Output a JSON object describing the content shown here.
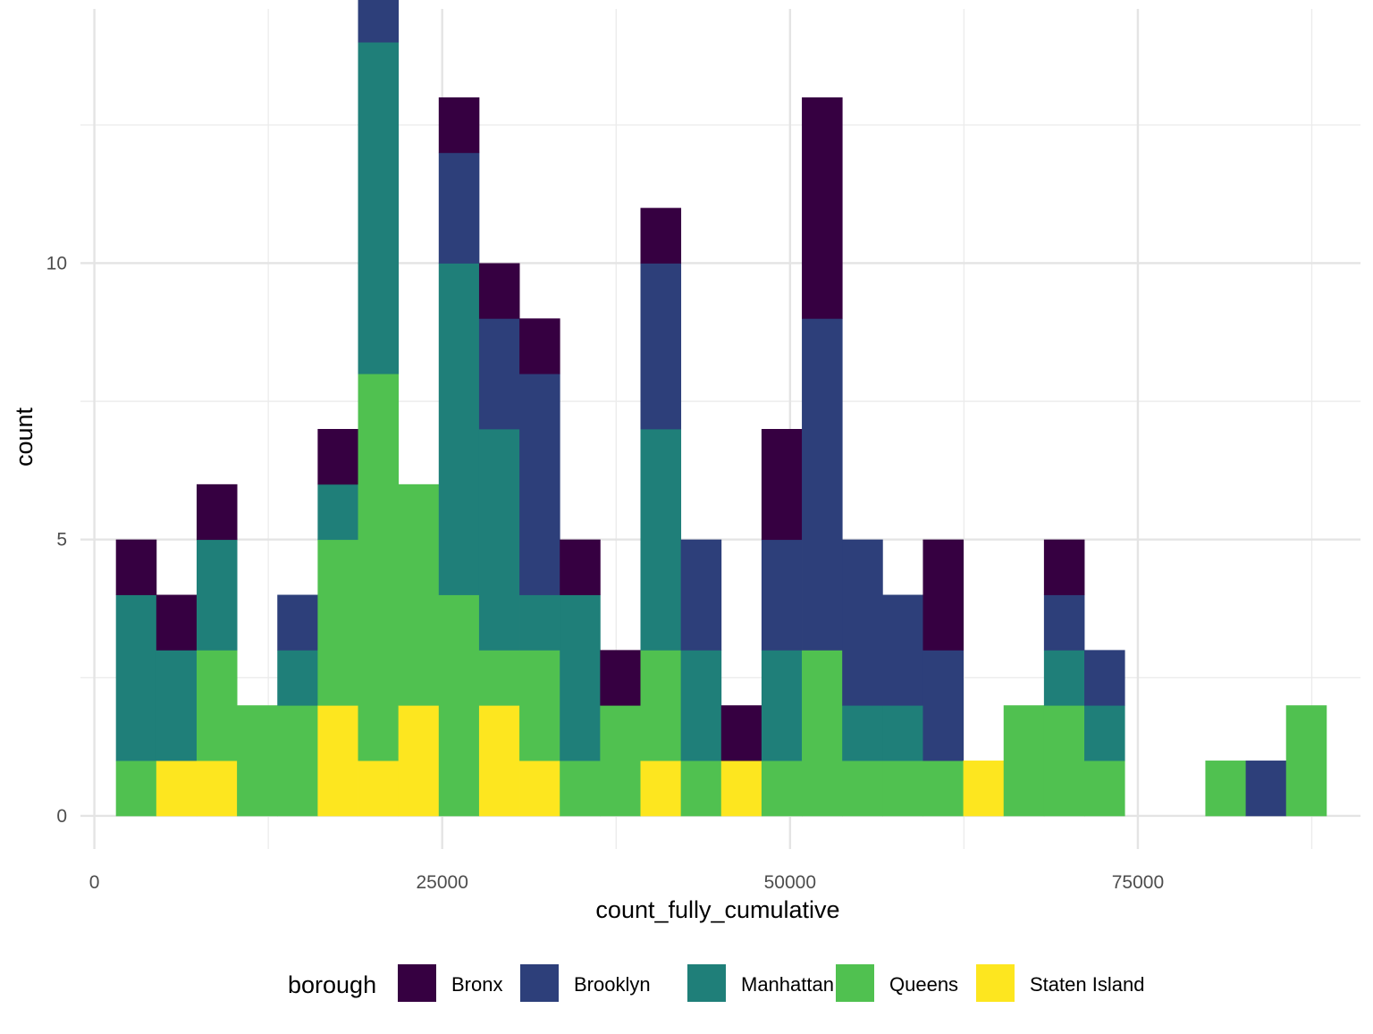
{
  "chart_data": {
    "type": "bar",
    "subtype": "stacked-histogram",
    "title": "",
    "xlabel": "count_fully_cumulative",
    "ylabel": "count",
    "x_ticks": [
      0,
      25000,
      50000,
      75000
    ],
    "y_ticks": [
      0,
      5,
      10
    ],
    "xlim": [
      -1000,
      91000
    ],
    "ylim": [
      -0.6,
      14.6
    ],
    "grid": true,
    "legend_position": "bottom",
    "legend_title": "borough",
    "bin_width": 2900,
    "bin_centers": [
      3000,
      5900,
      8800,
      11700,
      14600,
      17500,
      20400,
      23300,
      26200,
      29100,
      32000,
      34900,
      37800,
      40700,
      43600,
      46500,
      49400,
      52300,
      55200,
      58100,
      61000,
      63900,
      66800,
      69700,
      72600,
      75500,
      78400,
      81300,
      84200,
      87100
    ],
    "stack_order": [
      "Staten Island",
      "Queens",
      "Manhattan",
      "Brooklyn",
      "Bronx"
    ],
    "series": [
      {
        "name": "Bronx",
        "color": "#360041",
        "values": [
          1,
          1,
          1,
          0,
          0,
          1,
          0,
          0,
          1,
          1,
          1,
          1,
          1,
          1,
          0,
          1,
          2,
          4,
          0,
          0,
          2,
          0,
          0,
          1,
          0,
          0,
          0,
          0,
          0,
          0
        ]
      },
      {
        "name": "Brooklyn",
        "color": "#2D3F7A",
        "values": [
          0,
          0,
          0,
          0,
          1,
          0,
          1,
          0,
          2,
          2,
          4,
          0,
          0,
          3,
          2,
          0,
          2,
          6,
          3,
          2,
          2,
          0,
          0,
          1,
          1,
          0,
          0,
          0,
          1,
          0
        ]
      },
      {
        "name": "Manhattan",
        "color": "#1F7F79",
        "values": [
          3,
          2,
          2,
          0,
          1,
          1,
          6,
          0,
          6,
          4,
          1,
          3,
          0,
          4,
          2,
          0,
          2,
          0,
          1,
          1,
          0,
          0,
          0,
          1,
          1,
          0,
          0,
          0,
          0,
          0
        ]
      },
      {
        "name": "Queens",
        "color": "#50C150",
        "values": [
          1,
          0,
          2,
          2,
          2,
          3,
          7,
          4,
          4,
          1,
          2,
          1,
          2,
          2,
          1,
          0,
          1,
          3,
          1,
          1,
          1,
          0,
          2,
          2,
          1,
          0,
          0,
          1,
          0,
          2
        ]
      },
      {
        "name": "Staten Island",
        "color": "#FDE61F",
        "values": [
          0,
          1,
          1,
          0,
          0,
          2,
          1,
          2,
          0,
          2,
          1,
          0,
          0,
          1,
          0,
          1,
          0,
          0,
          0,
          0,
          0,
          1,
          0,
          0,
          0,
          0,
          0,
          0,
          0,
          0
        ]
      }
    ]
  }
}
